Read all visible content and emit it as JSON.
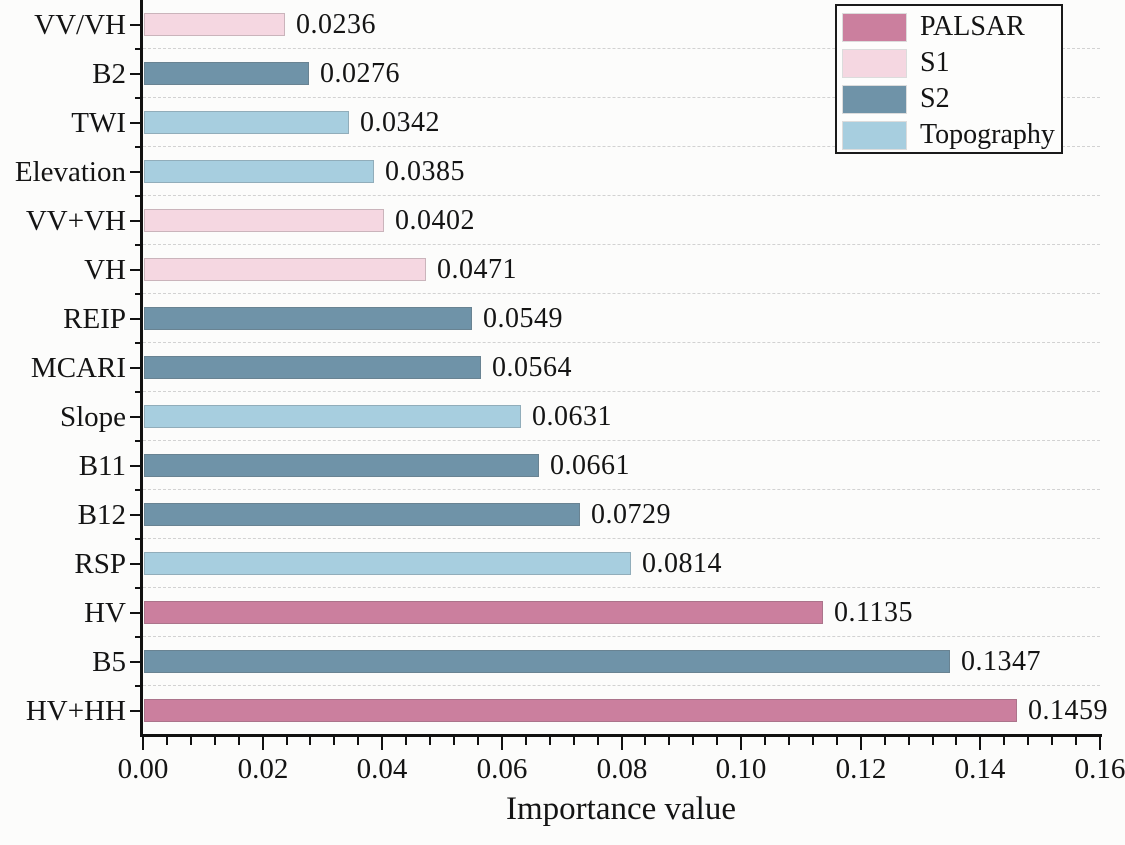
{
  "chart_data": {
    "type": "bar",
    "orientation": "horizontal",
    "title": "",
    "xlabel": "Importance value",
    "ylabel": "",
    "xlim": [
      0,
      0.16
    ],
    "x_major_tick_step": 0.02,
    "x_minor_tick_step": 0.004,
    "x_tick_labels": [
      "0.00",
      "0.02",
      "0.04",
      "0.06",
      "0.08",
      "0.10",
      "0.12",
      "0.14",
      "0.16"
    ],
    "grid": "horizontal dashed lines at category boundaries",
    "legend_position": "top-right",
    "legend": [
      {
        "label": "PALSAR",
        "color": "#cb7f9e"
      },
      {
        "label": "S1",
        "color": "#f5d7e1"
      },
      {
        "label": "S2",
        "color": "#6f93a8"
      },
      {
        "label": "Topography",
        "color": "#a7cedf"
      }
    ],
    "bars": [
      {
        "category": "VV/VH",
        "value": 0.0236,
        "label": "0.0236",
        "group": "S1"
      },
      {
        "category": "B2",
        "value": 0.0276,
        "label": "0.0276",
        "group": "S2"
      },
      {
        "category": "TWI",
        "value": 0.0342,
        "label": "0.0342",
        "group": "Topography"
      },
      {
        "category": "Elevation",
        "value": 0.0385,
        "label": "0.0385",
        "group": "Topography"
      },
      {
        "category": "VV+VH",
        "value": 0.0402,
        "label": "0.0402",
        "group": "S1"
      },
      {
        "category": "VH",
        "value": 0.0471,
        "label": "0.0471",
        "group": "S1"
      },
      {
        "category": "REIP",
        "value": 0.0549,
        "label": "0.0549",
        "group": "S2"
      },
      {
        "category": "MCARI",
        "value": 0.0564,
        "label": "0.0564",
        "group": "S2"
      },
      {
        "category": "Slope",
        "value": 0.0631,
        "label": "0.0631",
        "group": "Topography"
      },
      {
        "category": "B11",
        "value": 0.0661,
        "label": "0.0661",
        "group": "S2"
      },
      {
        "category": "B12",
        "value": 0.0729,
        "label": "0.0729",
        "group": "S2"
      },
      {
        "category": "RSP",
        "value": 0.0814,
        "label": "0.0814",
        "group": "Topography"
      },
      {
        "category": "HV",
        "value": 0.1135,
        "label": "0.1135",
        "group": "PALSAR"
      },
      {
        "category": "B5",
        "value": 0.1347,
        "label": "0.1347",
        "group": "S2"
      },
      {
        "category": "HV+HH",
        "value": 0.1459,
        "label": "0.1459",
        "group": "PALSAR"
      }
    ]
  }
}
